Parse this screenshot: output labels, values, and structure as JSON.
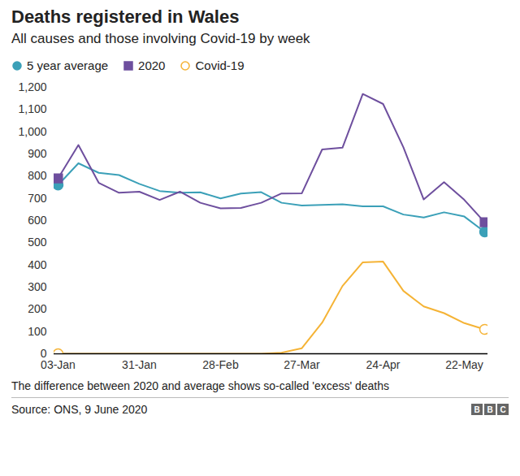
{
  "chart_data": {
    "type": "line",
    "title": "Deaths registered in Wales",
    "subtitle": "All causes and those involving Covid-19 by week",
    "note": "The difference between 2020 and average shows so-called 'excess' deaths",
    "source": "Source: ONS, 9 June 2020",
    "logo": "BBC",
    "categories": [
      "03-Jan",
      null,
      null,
      null,
      "31-Jan",
      null,
      null,
      null,
      "28-Feb",
      null,
      null,
      null,
      "27-Mar",
      null,
      null,
      null,
      "24-Apr",
      null,
      null,
      null,
      "22-May",
      null
    ],
    "series": [
      {
        "name": "5 year average",
        "color": "#3ba0b8",
        "marker": "circle",
        "values": [
          760,
          858,
          815,
          805,
          765,
          733,
          725,
          727,
          700,
          722,
          728,
          680,
          668,
          670,
          673,
          664,
          664,
          627,
          614,
          637,
          618,
          549
        ]
      },
      {
        "name": "2020",
        "color": "#6e4f9e",
        "marker": "square",
        "values": [
          790,
          940,
          770,
          725,
          730,
          693,
          730,
          680,
          655,
          657,
          680,
          722,
          723,
          920,
          928,
          1170,
          1125,
          930,
          695,
          773,
          693,
          592
        ]
      },
      {
        "name": "Covid-19",
        "color": "#f5b335",
        "marker": "circle-open",
        "values": [
          0,
          0,
          0,
          0,
          0,
          0,
          0,
          0,
          0,
          0,
          0,
          5,
          25,
          140,
          305,
          412,
          415,
          283,
          213,
          183,
          138,
          110
        ]
      }
    ],
    "ylim": [
      0,
      1200
    ],
    "yticks": [
      0,
      100,
      200,
      300,
      400,
      500,
      600,
      700,
      800,
      900,
      {
        "value": 1000,
        "label": "1,000"
      },
      {
        "value": 1100,
        "label": "1,100"
      },
      {
        "value": 1200,
        "label": "1,200"
      }
    ],
    "grid": false,
    "legend": "top"
  }
}
